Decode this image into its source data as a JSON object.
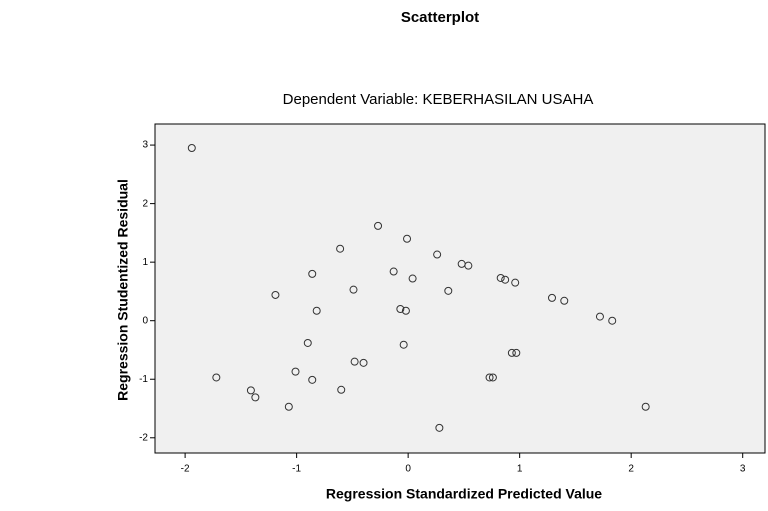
{
  "chart_data": {
    "type": "scatter",
    "title": "Scatterplot",
    "subtitle": "Dependent Variable: KEBERHASILAN USAHA",
    "x_label": "Regression Standardized Predicted Value",
    "y_label": "Regression Studentized Residual",
    "color": "#333333",
    "background": "#f0f0f0",
    "xlim": [
      -2.27,
      3.2
    ],
    "ylim": [
      -2.26,
      3.36
    ],
    "xticks": [
      -2,
      -1,
      0,
      1,
      2,
      3
    ],
    "yticks": [
      -2,
      -1,
      0,
      1,
      2,
      3
    ],
    "x": [
      -1.94,
      -0.27,
      -0.01,
      -0.61,
      0.26,
      0.48,
      0.54,
      -0.86,
      -0.13,
      0.83,
      0.87,
      0.04,
      0.96,
      -0.49,
      0.36,
      -1.19,
      1.29,
      1.4,
      -0.07,
      -0.02,
      -0.82,
      1.72,
      1.83,
      -0.9,
      -0.04,
      0.93,
      0.97,
      -0.48,
      -0.4,
      -1.01,
      -1.72,
      0.73,
      0.76,
      -0.86,
      -0.6,
      -1.41,
      -1.37,
      -1.07,
      2.13,
      0.28
    ],
    "values": [
      2.95,
      1.62,
      1.4,
      1.23,
      1.13,
      0.97,
      0.94,
      0.8,
      0.84,
      0.73,
      0.7,
      0.72,
      0.65,
      0.53,
      0.51,
      0.44,
      0.39,
      0.34,
      0.2,
      0.17,
      0.17,
      0.07,
      0.0,
      -0.38,
      -0.41,
      -0.55,
      -0.55,
      -0.7,
      -0.72,
      -0.87,
      -0.97,
      -0.97,
      -0.97,
      -1.01,
      -1.18,
      -1.19,
      -1.31,
      -1.47,
      -1.47,
      -1.83
    ]
  }
}
